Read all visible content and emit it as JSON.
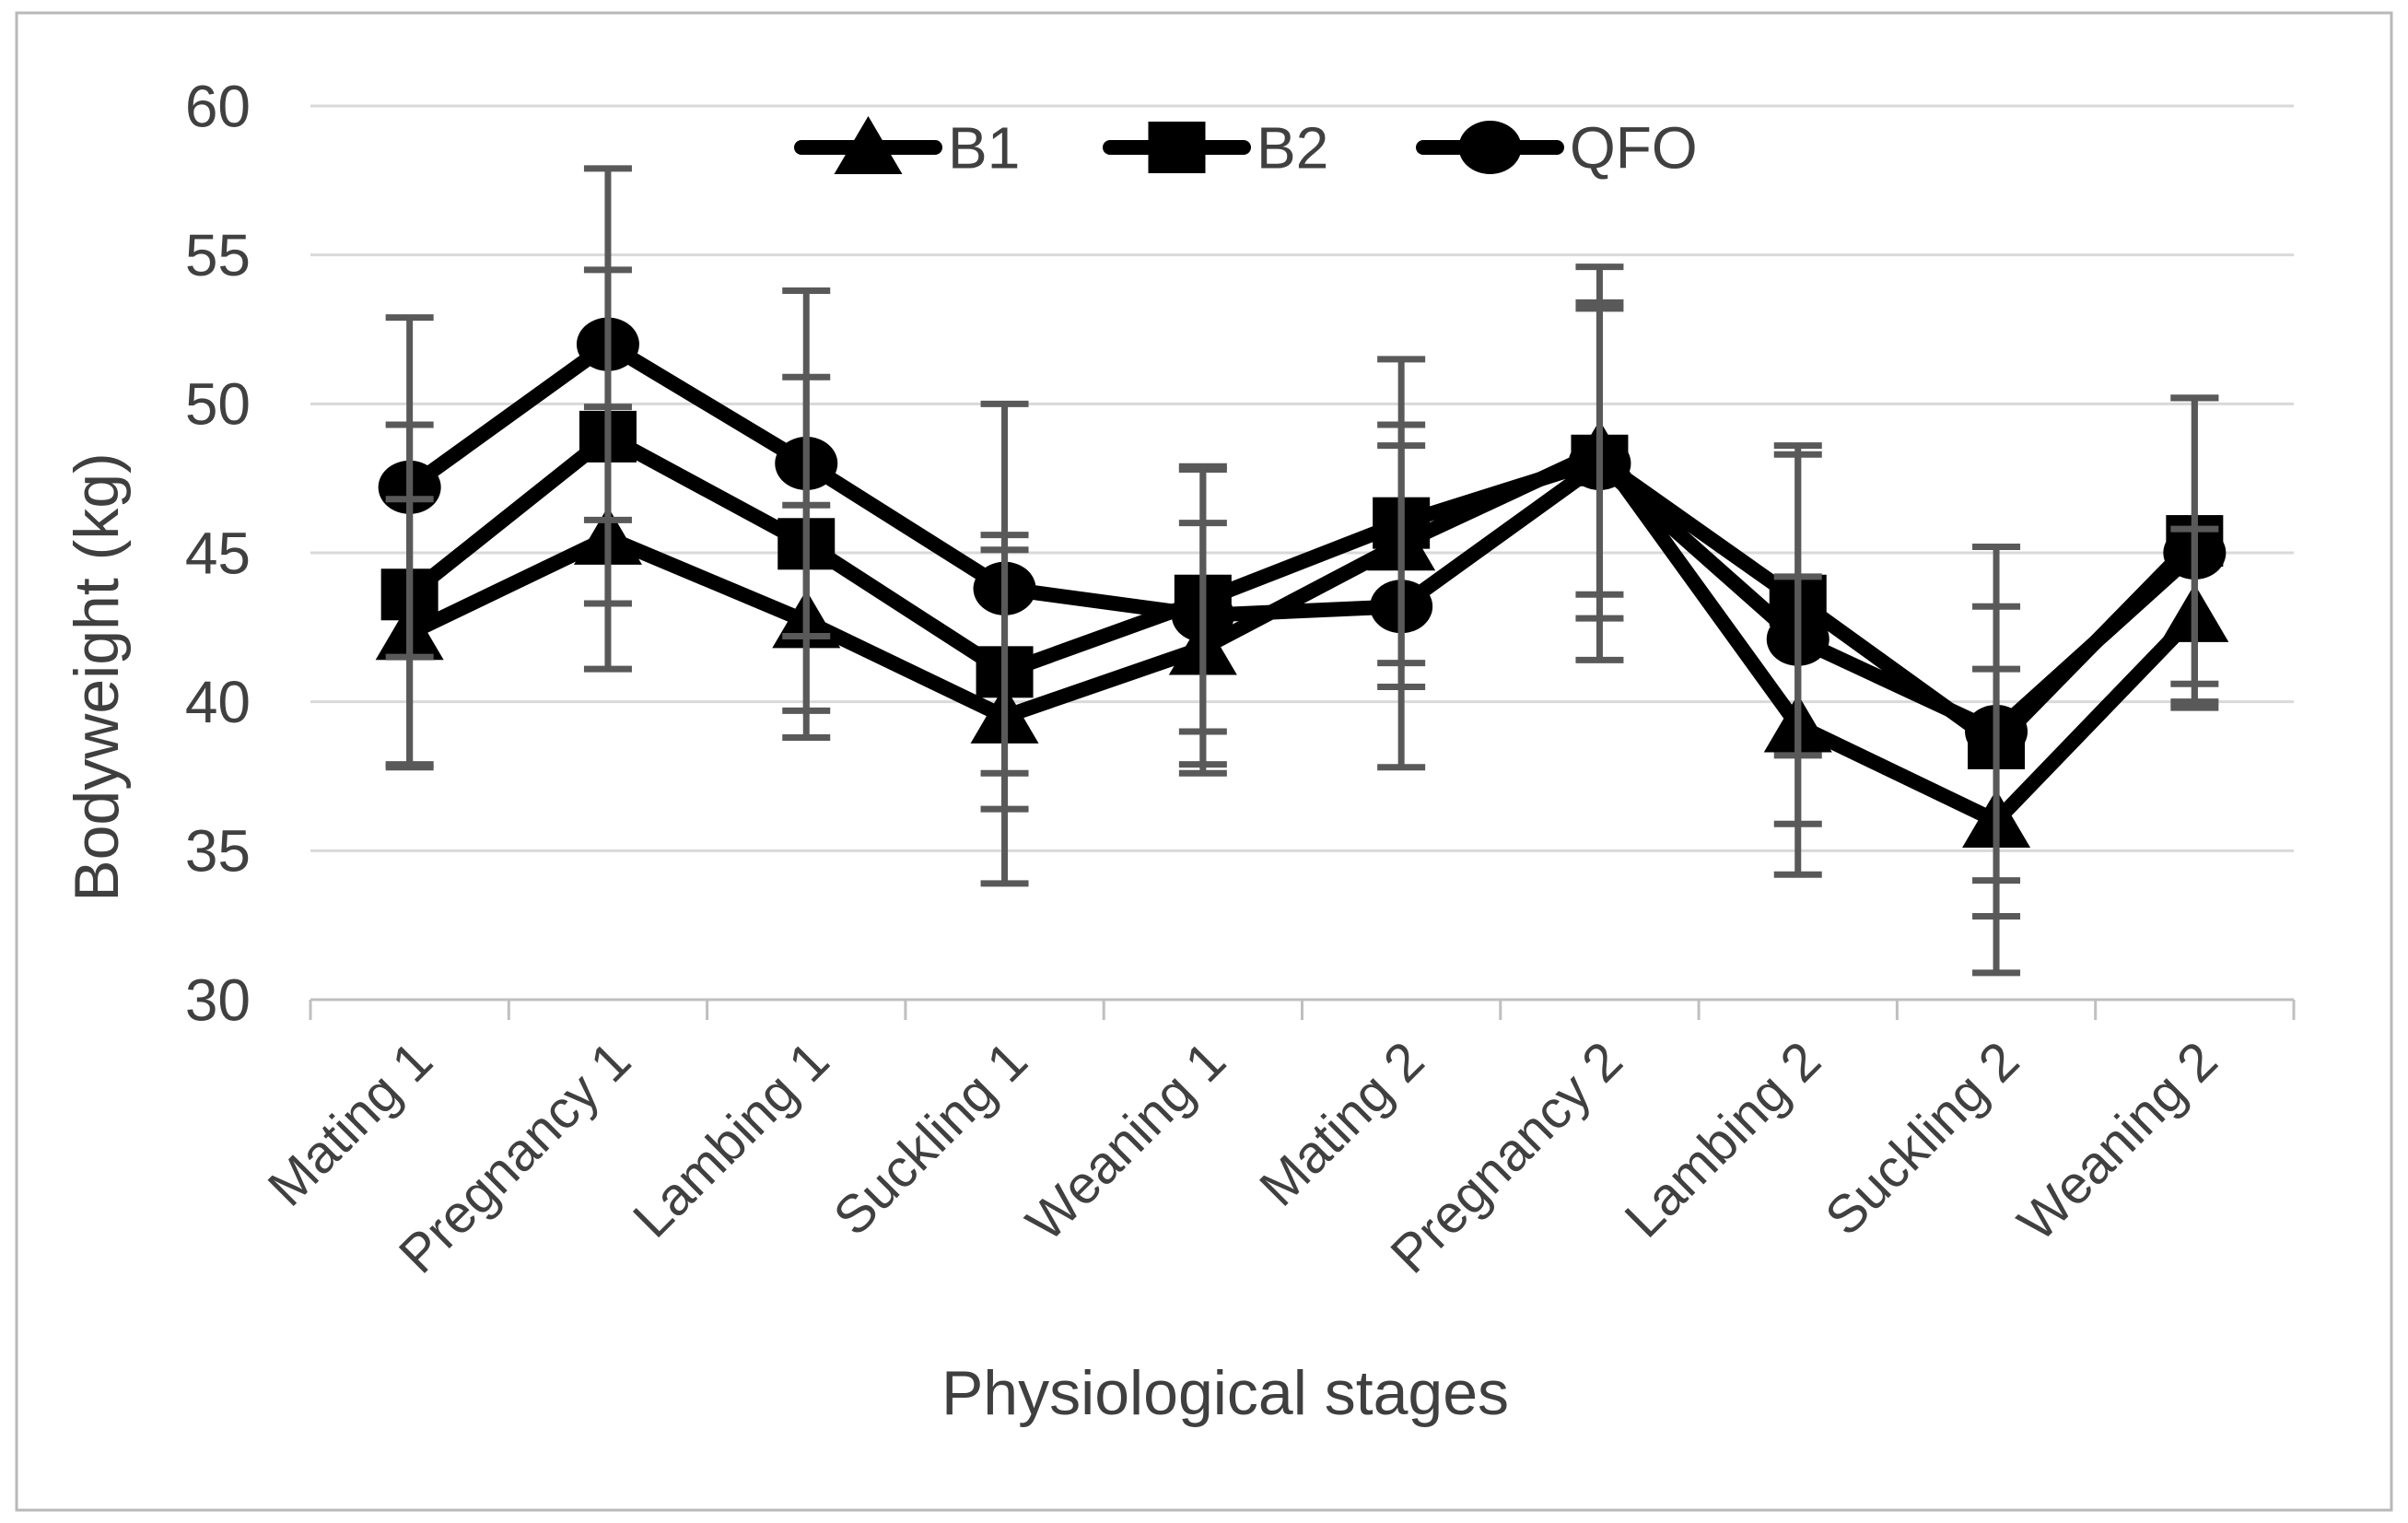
{
  "figure": {
    "background": "#ffffff",
    "border_color": "#b9b9b9",
    "gridline_color": "#d9d9d9",
    "axis_color": "#bfbfbf",
    "error_bar_color": "#595959",
    "series_color": "#000000",
    "text_color": "#404040"
  },
  "chart_data": {
    "type": "line",
    "title": "",
    "xlabel": "Physiological stages",
    "ylabel": "Bodyweight (kg)",
    "ylim": [
      30,
      60
    ],
    "yticks": [
      30,
      35,
      40,
      45,
      50,
      55,
      60
    ],
    "grid": "horizontal",
    "legend_position": "top-center",
    "x_label_rotation": -45,
    "categories": [
      "Mating 1",
      "Pregnancy 1",
      "Lambing 1",
      "Suckling 1",
      "Weaning 1",
      "Mating 2",
      "Pregnancy 2",
      "Lambing 2",
      "Suckling 2",
      "Weaning 2"
    ],
    "series": [
      {
        "name": "B1",
        "marker": "triangle",
        "color": "#000000",
        "values": [
          42.3,
          45.5,
          42.7,
          39.5,
          41.8,
          45.3,
          48.4,
          39.2,
          36.0,
          42.9
        ],
        "errors": [
          4.5,
          4.4,
          3.9,
          5.6,
          4.2,
          4.0,
          4.8,
          5.0,
          5.1,
          2.9
        ]
      },
      {
        "name": "B2",
        "marker": "square",
        "color": "#000000",
        "values": [
          43.6,
          48.9,
          45.3,
          41.0,
          43.4,
          46.0,
          48.1,
          43.4,
          38.6,
          45.4
        ],
        "errors": [
          5.7,
          5.6,
          5.6,
          4.6,
          4.4,
          5.5,
          5.3,
          5.2,
          4.6,
          4.8
        ]
      },
      {
        "name": "QFO",
        "marker": "circle",
        "color": "#000000",
        "values": [
          47.2,
          52.0,
          48.0,
          43.8,
          42.9,
          43.2,
          48.0,
          42.1,
          39.0,
          45.0
        ],
        "errors": [
          5.7,
          5.9,
          5.8,
          6.2,
          5.0,
          5.4,
          6.6,
          6.2,
          6.2,
          5.2
        ]
      }
    ]
  }
}
